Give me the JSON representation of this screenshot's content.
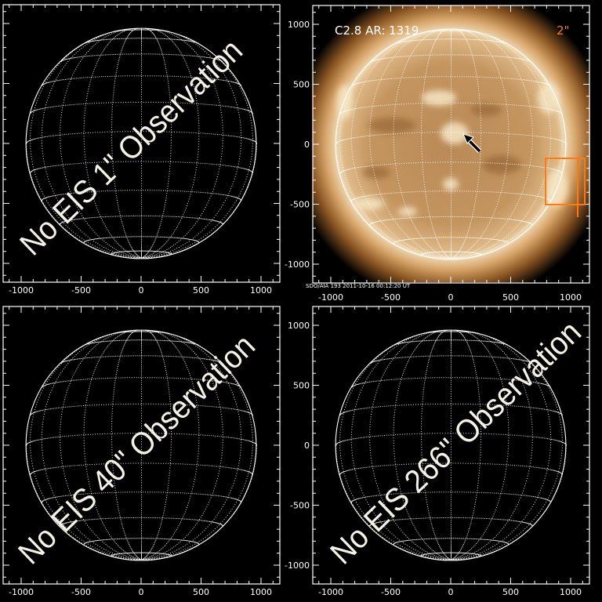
{
  "panels": [
    {
      "id": "eis-1",
      "watermark": "No EIS 1\" Observation"
    },
    {
      "id": "aia-193",
      "label": "C2.8 AR: 1319",
      "scale_label": "2\"",
      "footer": "SDO/AIA 193   2011-10-16 00:12:20 UT"
    },
    {
      "id": "eis-40",
      "watermark": "No EIS 40\" Observation"
    },
    {
      "id": "eis-266",
      "watermark": "No EIS 266\" Observation"
    }
  ],
  "axes": {
    "tick_labels": [
      "-1000",
      "-500",
      "0",
      "500",
      "1000"
    ],
    "tick_values": [
      -1000,
      -500,
      0,
      500,
      1000
    ],
    "range": [
      -1150,
      1150
    ]
  },
  "colors": {
    "background": "#000000",
    "axes": "#ffffff",
    "grid": "#ffffff",
    "aia_label": "#ffffff",
    "scale_label": "#ff7a14",
    "eis_box": "#ff7a14",
    "arrow": "#000000"
  },
  "icons": {
    "flare_marker": "arrow-icon"
  }
}
